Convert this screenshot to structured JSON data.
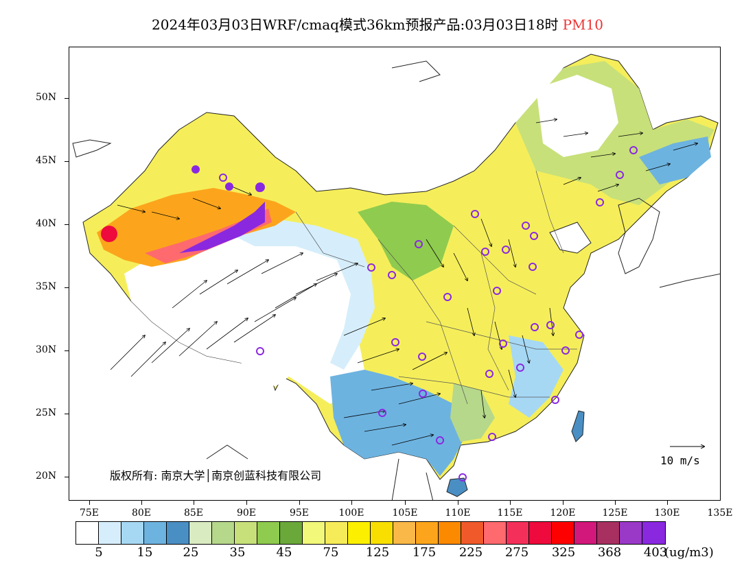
{
  "title": {
    "main": "2024年03月03日WRF/cmaq模式36km预报产品:03月03日18时",
    "variable": "PM10",
    "variable_color": "#ee3333"
  },
  "axes": {
    "lat_labels": [
      "50N",
      "45N",
      "40N",
      "35N",
      "30N",
      "25N",
      "20N"
    ],
    "lon_labels": [
      "75E",
      "80E",
      "85E",
      "90E",
      "95E",
      "100E",
      "105E",
      "110E",
      "115E",
      "120E",
      "125E",
      "130E",
      "135E"
    ]
  },
  "copyright": "版权所有: 南京大学│南京创蓝科技有限公司",
  "wind_reference": {
    "label": "10 m/s"
  },
  "colorbar": {
    "colors": [
      "#ffffff",
      "#d6eefb",
      "#a6d8f4",
      "#6db3e0",
      "#4a8fc4",
      "#d9ebc0",
      "#b6d88a",
      "#c7e07a",
      "#8fcb4e",
      "#6aa83a",
      "#f1f87a",
      "#f6ec5a",
      "#fcef00",
      "#f8df00",
      "#f9b848",
      "#fca51c",
      "#fb8a00",
      "#f05a2a",
      "#ff6a6e",
      "#f4305a",
      "#ee0a3c",
      "#ff0000",
      "#d2187a",
      "#a83060",
      "#9a38c8",
      "#8a28e0"
    ],
    "labels": [
      "5",
      "15",
      "25",
      "35",
      "45",
      "75",
      "125",
      "175",
      "225",
      "275",
      "325",
      "368",
      "403"
    ],
    "unit": "(ug/m3)"
  },
  "markers": {
    "color": "#8a28e0"
  }
}
